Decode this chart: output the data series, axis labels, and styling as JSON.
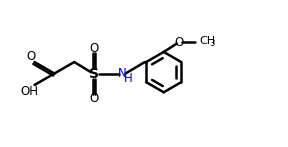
{
  "bg_color": "#ffffff",
  "line_color": "#000000",
  "nh_color": "#0000cd",
  "line_width": 1.8,
  "figsize": [
    2.88,
    1.47
  ],
  "dpi": 100,
  "xlim": [
    0,
    10
  ],
  "ylim": [
    0,
    5.2
  ]
}
